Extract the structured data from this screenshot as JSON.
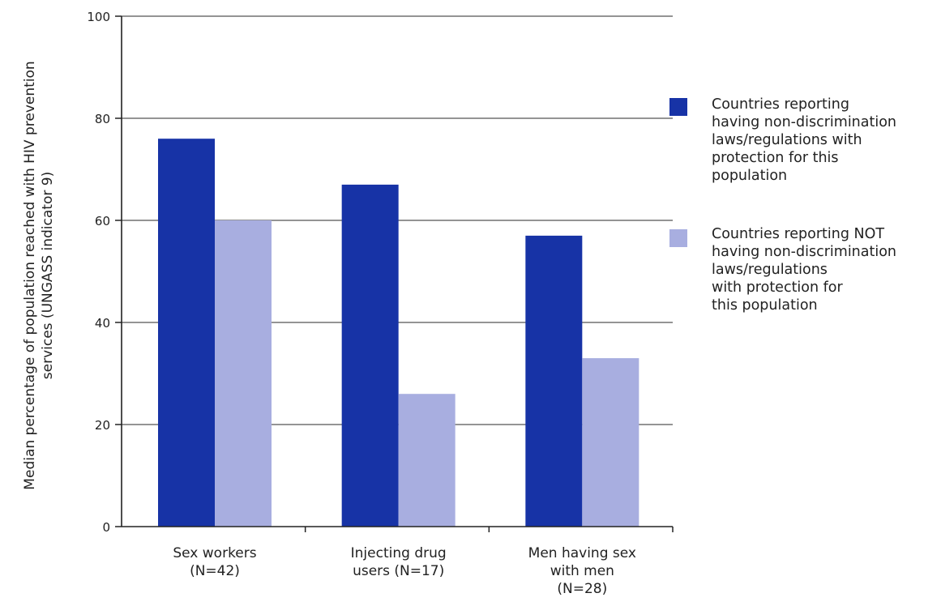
{
  "colors": {
    "series1": "#1733a6",
    "series2": "#a8aee0",
    "axis": "#222222",
    "grid": "#555555"
  },
  "chart_data": {
    "type": "bar",
    "categories": [
      "Sex workers\n(N=42)",
      "Injecting drug\nusers (N=17)",
      "Men having sex\nwith men\n(N=28)"
    ],
    "series": [
      {
        "name": "Countries reporting\nhaving non-discrimination\nlaws/regulations with\nprotection for this\npopulation",
        "values": [
          76,
          67,
          57
        ]
      },
      {
        "name": "Countries reporting NOT\nhaving non-discrimination\nlaws/regulations\nwith protection for\nthis population",
        "values": [
          60,
          26,
          33
        ]
      }
    ],
    "ylabel": "Median percentage of population reached with HIV prevention\nservices (UNGASS indicator 9)",
    "xlabel": "",
    "ylim": [
      0,
      100
    ],
    "yticks": [
      0,
      20,
      40,
      60,
      80,
      100
    ],
    "grid": true,
    "legend_position": "right"
  }
}
